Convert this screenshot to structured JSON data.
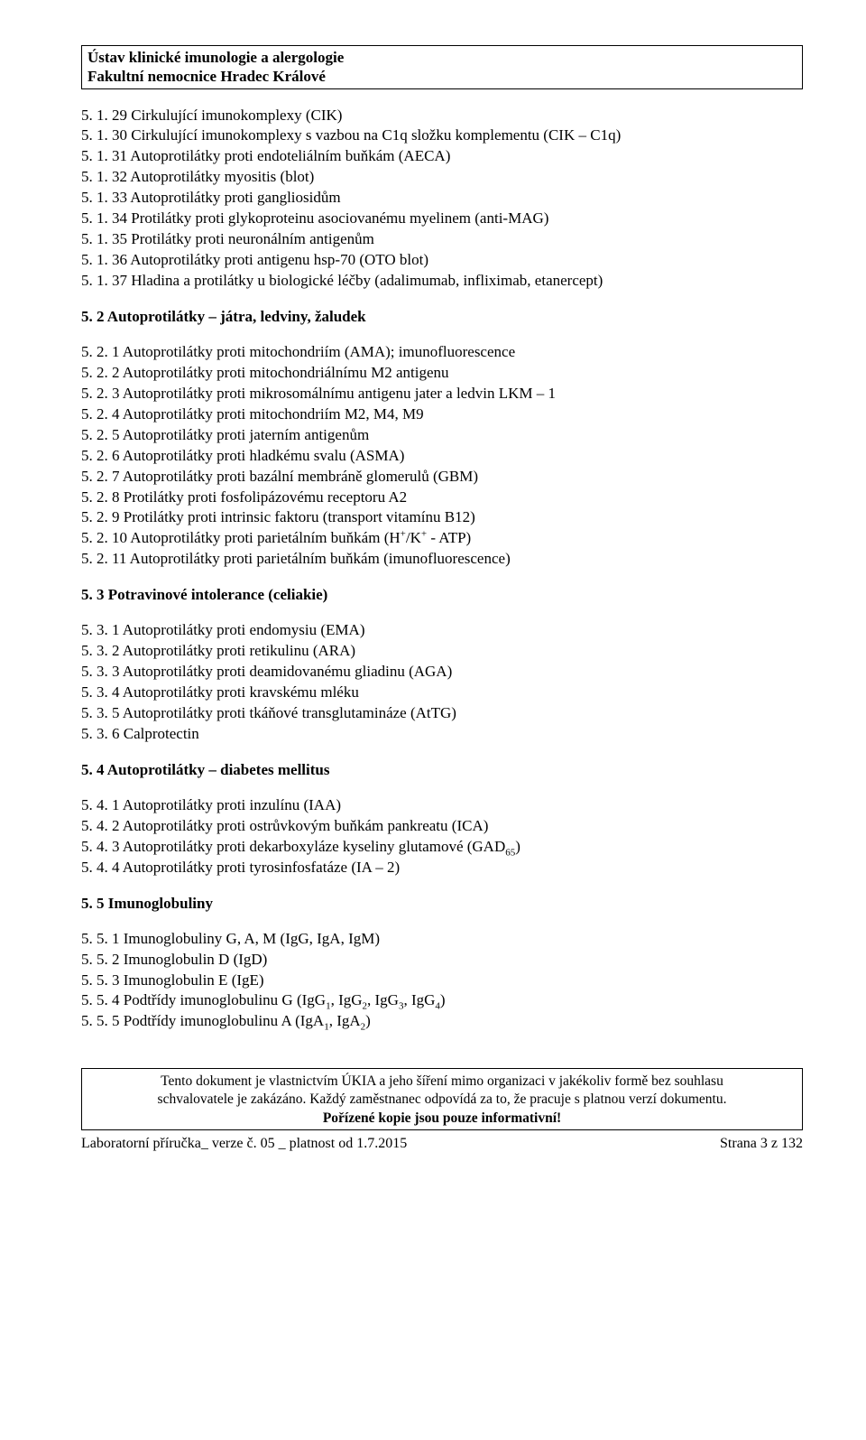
{
  "header": {
    "line1": "Ústav klinické imunologie a alergologie",
    "line2": "Fakultní nemocnice Hradec Králové"
  },
  "section_5_1": [
    "5. 1. 29 Cirkulující imunokomplexy (CIK)",
    "5. 1. 30 Cirkulující imunokomplexy s vazbou na C1q složku komplementu (CIK – C1q)",
    "5. 1. 31 Autoprotilátky proti endoteliálním buňkám (AECA)",
    "5. 1. 32 Autoprotilátky myositis (blot)",
    "5. 1. 33 Autoprotilátky proti gangliosidům",
    "5. 1. 34 Protilátky proti glykoproteinu asociovanému myelinem (anti-MAG)",
    "5. 1. 35 Protilátky proti neuronálním antigenům",
    "5. 1. 36 Autoprotilátky proti antigenu hsp-70 (OTO blot)",
    "5. 1. 37 Hladina a protilátky u biologické léčby (adalimumab, infliximab, etanercept)"
  ],
  "heading_5_2": "5. 2 Autoprotilátky – játra, ledviny, žaludek",
  "section_5_2": [
    "5. 2.  1 Autoprotilátky proti mitochondriím (AMA); imunofluorescence",
    "5. 2.  2 Autoprotilátky proti mitochondriálnímu M2 antigenu",
    "5. 2.  3 Autoprotilátky proti mikrosomálnímu antigenu jater a ledvin LKM – 1",
    "5. 2.  4 Autoprotilátky proti mitochondriím M2, M4, M9",
    "5. 2.  5 Autoprotilátky proti jaterním antigenům",
    "5. 2.  6 Autoprotilátky proti hladkému svalu (ASMA)",
    "5. 2.  7 Autoprotilátky proti bazální membráně glomerulů (GBM)",
    "5. 2.  8 Protilátky proti fosfolipázovému receptoru A2",
    "5. 2.  9 Protilátky proti intrinsic faktoru (transport vitamínu B12)"
  ],
  "line_5_2_10": {
    "pre": "5. 2. 10 Autoprotilátky proti parietálním buňkám (H",
    "sup1": "+",
    "mid": "/K",
    "sup2": "+",
    "post": "  - ATP)"
  },
  "line_5_2_11": "5. 2. 11 Autoprotilátky proti parietálním buňkám (imunofluorescence)",
  "heading_5_3": "5. 3 Potravinové intolerance (celiakie)",
  "section_5_3": [
    "5. 3.  1 Autoprotilátky proti endomysiu (EMA)",
    "5. 3.  2 Autoprotilátky proti retikulinu (ARA)",
    "5. 3.  3 Autoprotilátky proti deamidovanému gliadinu (AGA)",
    "5. 3.  4 Autoprotilátky proti kravskému mléku",
    "5. 3.  5 Autoprotilátky proti tkáňové transglutamináze (AtTG)",
    "5. 3.  6 Calprotectin"
  ],
  "heading_5_4": "5. 4 Autoprotilátky – diabetes mellitus",
  "section_5_4": [
    "5. 4.  1 Autoprotilátky proti inzulínu (IAA)",
    "5. 4.  2 Autoprotilátky proti ostrůvkovým buňkám pankreatu (ICA)"
  ],
  "line_5_4_3": {
    "pre": "5. 4.  3 Autoprotilátky proti dekarboxyláze kyseliny glutamové (GAD",
    "sub": "65",
    "post": ")"
  },
  "line_5_4_4": "5. 4.  4 Autoprotilátky proti tyrosinfosfatáze (IA – 2)",
  "heading_5_5": "5. 5 Imunoglobuliny",
  "section_5_5": [
    "5. 5.  1 Imunoglobuliny G, A, M (IgG, IgA, IgM)",
    "5. 5.  2 Imunoglobulin D (IgD)",
    "5. 5.  3 Imunoglobulin E (IgE)"
  ],
  "line_5_5_4": {
    "pre": "5. 5.  4 Podtřídy imunoglobulinu G (IgG",
    "s1": "1",
    "m1": ", IgG",
    "s2": "2",
    "m2": ", IgG",
    "s3": "3",
    "m3": ", IgG",
    "s4": "4",
    "post": ")"
  },
  "line_5_5_5": {
    "pre": "5. 5.  5 Podtřídy imunoglobulinu A (IgA",
    "s1": "1",
    "m1": ", IgA",
    "s2": "2",
    "post": ")"
  },
  "footer_box": {
    "l1": "Tento dokument je vlastnictvím ÚKIA a jeho šíření mimo organizaci v jakékoliv formě bez souhlasu",
    "l2": "schvalovatele je zakázáno. Každý zaměstnanec odpovídá za to, že pracuje s platnou verzí dokumentu.",
    "l3": "Pořízené kopie jsou pouze informativní!"
  },
  "footer_line": {
    "left": "Laboratorní příručka_ verze č. 05 _ platnost od 1.7.2015",
    "right": "Strana 3 z 132"
  }
}
